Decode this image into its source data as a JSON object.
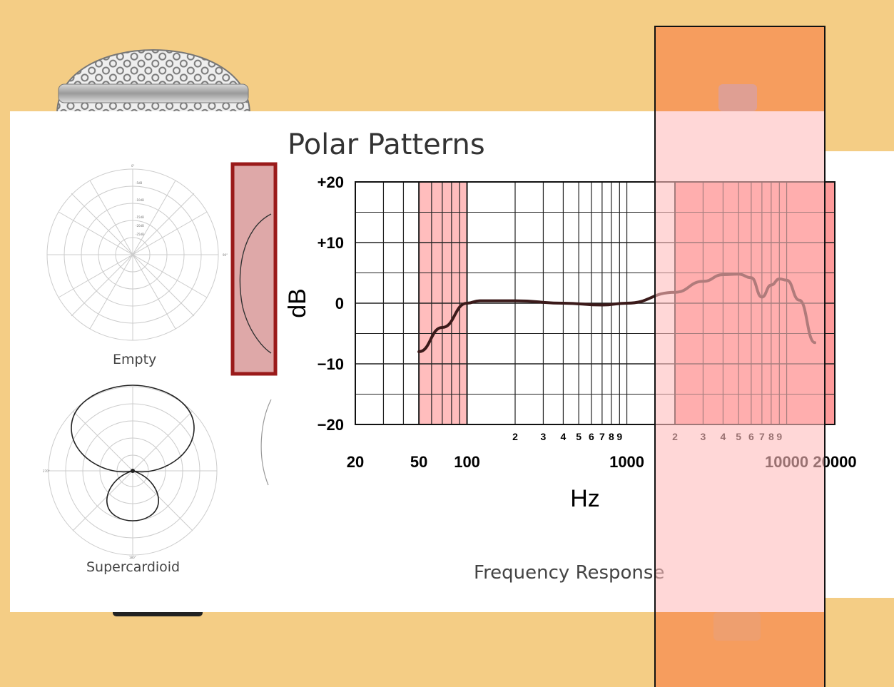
{
  "slide": {
    "title": "Polar Patterns",
    "panels": [
      {
        "caption": "Empty"
      },
      {
        "caption": "Supercardioid"
      }
    ],
    "polar_small_ticks": {
      "zero": "0°",
      "r1": "-5dB",
      "r2": "-10dB",
      "r3": "-15dB",
      "r4": "-20dB",
      "r5": "-25dB",
      "side_left": "270°",
      "side_right": "90°",
      "bottom": "180°"
    }
  },
  "colors": {
    "background": "#f4cd85",
    "highlight_pink": "#ff9a9a",
    "highlight_light": "#ffbdbd",
    "overlay_orange": "#f59a5c",
    "curve": "#3b1a1a",
    "frame_red": "#9a1a1a"
  },
  "chart_data": {
    "type": "line",
    "title": "Frequency Response",
    "xlabel": "Hz",
    "ylabel": "dB",
    "x_scale": "log",
    "xlim": [
      20,
      20000
    ],
    "ylim": [
      -20,
      20
    ],
    "y_ticks": [
      "+20",
      "+10",
      "0",
      "−10",
      "−20"
    ],
    "y_tick_values": [
      20,
      10,
      0,
      -10,
      -20
    ],
    "x_major_ticks": [
      "20",
      "50",
      "100",
      "1000",
      "10000",
      "20000"
    ],
    "x_major_tick_values": [
      20,
      50,
      100,
      1000,
      10000,
      20000
    ],
    "x_minor_tick_labels_1": [
      "2",
      "3",
      "4",
      "5",
      "6",
      "7",
      "8",
      "9"
    ],
    "x_minor_tick_labels_2": [
      "2",
      "3",
      "4",
      "5",
      "6",
      "7",
      "8",
      "9"
    ],
    "grid": true,
    "series": [
      {
        "x": [
          50,
          70,
          100,
          120,
          200,
          400,
          700,
          1000,
          2000,
          3000,
          4000,
          5000,
          6000,
          7000,
          8000,
          9000,
          10000,
          12000,
          15000
        ],
        "y": [
          -8,
          -4,
          0,
          0.4,
          0.4,
          0,
          -0.3,
          0,
          1.8,
          3.6,
          4.7,
          4.8,
          4.2,
          1.0,
          3.0,
          4.0,
          3.8,
          0.5,
          -6.5
        ]
      }
    ],
    "highlight_bands": [
      {
        "from": 50,
        "to": 100
      },
      {
        "from": 2000,
        "to": 20000
      }
    ]
  }
}
